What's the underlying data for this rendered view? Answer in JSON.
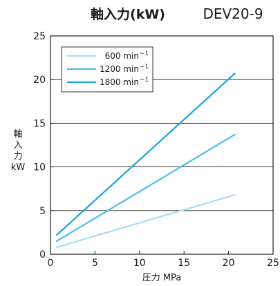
{
  "header": {
    "title": "軸入力(kW)",
    "model": "DEV20-9"
  },
  "chart_data": {
    "type": "line",
    "title": "軸入力(kW)",
    "subtitle": "DEV20-9",
    "xlabel": "圧力 MPa",
    "ylabel_lines": [
      "軸",
      "入",
      "力",
      "kW"
    ],
    "xlim": [
      0,
      25
    ],
    "ylim": [
      0,
      25
    ],
    "x_ticks": [
      0,
      5,
      10,
      15,
      20,
      25
    ],
    "y_ticks": [
      0,
      5,
      10,
      15,
      20,
      25
    ],
    "grid": "horizontal",
    "legend_placement": "top-left",
    "series": [
      {
        "name": "600 min",
        "name_sup": "−1",
        "color": "#a8dcf2",
        "x": [
          0.7,
          20.7
        ],
        "y": [
          0.8,
          6.8
        ]
      },
      {
        "name": "1200 min",
        "name_sup": "−1",
        "color": "#4cbde8",
        "x": [
          0.7,
          20.7
        ],
        "y": [
          1.5,
          13.7
        ]
      },
      {
        "name": "1800 min",
        "name_sup": "−1",
        "color": "#18a3d9",
        "x": [
          0.7,
          20.7
        ],
        "y": [
          2.2,
          20.7
        ]
      }
    ]
  }
}
